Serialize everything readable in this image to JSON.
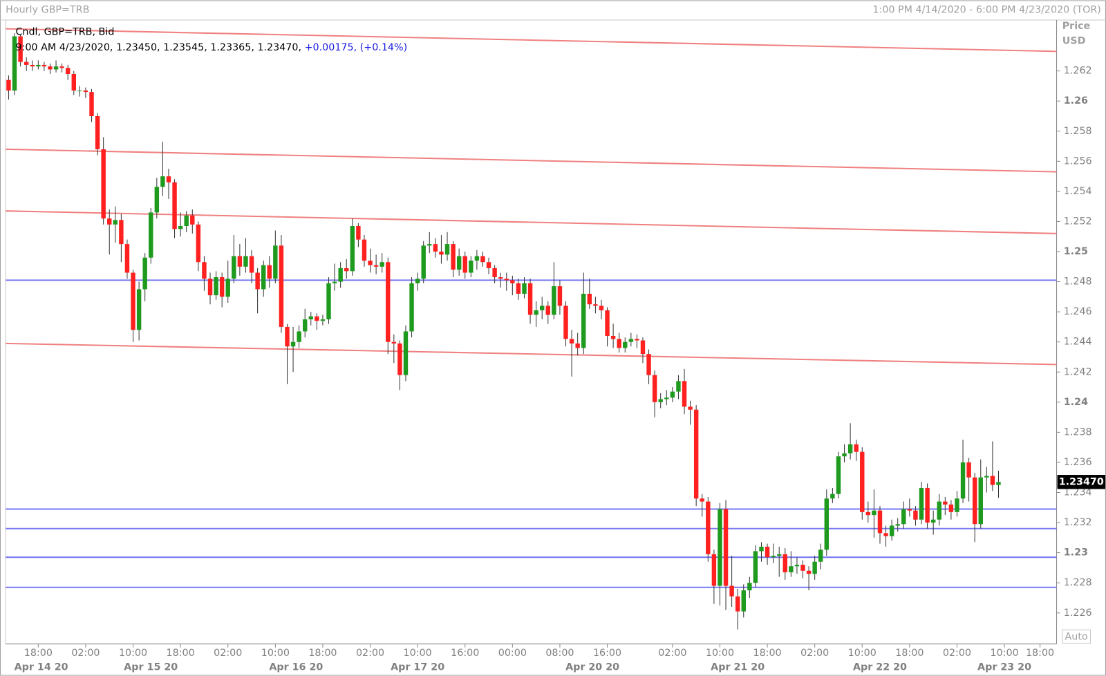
{
  "chart_data": {
    "type": "candlestick",
    "title": "Hourly GBP=TRB",
    "range_label": "1:00 PM 4/14/2020 - 6:00 PM 4/23/2020 (TOR)",
    "legend": {
      "line1": "Cndl, GBP=TRB, Bid",
      "line2": "9:00 AM 4/23/2020, 1.23450, 1.23545, 1.23365, 1.23470,",
      "change": "+0.00175, (+0.14%)"
    },
    "axis_title": "Price",
    "axis_unit": "USD",
    "auto_label": "Auto",
    "up_color": "#1e9b1e",
    "down_color": "#ff2020",
    "ylim": [
      1.22394,
      1.26538
    ],
    "yticks": [
      1.262,
      1.26,
      1.258,
      1.256,
      1.254,
      1.252,
      1.25,
      1.248,
      1.246,
      1.244,
      1.242,
      1.24,
      1.238,
      1.236,
      1.234,
      1.232,
      1.23,
      1.228,
      1.226
    ],
    "xlim": [
      -0.5,
      176.8
    ],
    "xticks": [
      {
        "value": 5,
        "label": "18:00"
      },
      {
        "value": 13,
        "label": "02:00"
      },
      {
        "value": 21,
        "label": "10:00"
      },
      {
        "value": 29,
        "label": "18:00"
      },
      {
        "value": 37,
        "label": "02:00"
      },
      {
        "value": 45,
        "label": "10:00"
      },
      {
        "value": 53,
        "label": "18:00"
      },
      {
        "value": 61,
        "label": "02:00"
      },
      {
        "value": 69,
        "label": "10:00"
      },
      {
        "value": 77,
        "label": "16:00"
      },
      {
        "value": 85,
        "label": "00:00"
      },
      {
        "value": 93,
        "label": "08:00"
      },
      {
        "value": 101,
        "label": "16:00"
      },
      {
        "value": 112,
        "label": "02:00"
      },
      {
        "value": 120,
        "label": "10:00"
      },
      {
        "value": 128,
        "label": "18:00"
      },
      {
        "value": 136,
        "label": "02:00"
      },
      {
        "value": 144,
        "label": "10:00"
      },
      {
        "value": 152,
        "label": "18:00"
      },
      {
        "value": 160,
        "label": "02:00"
      },
      {
        "value": 168,
        "label": "10:00"
      },
      {
        "value": 174,
        "label": "18:00"
      }
    ],
    "date_ticks": [
      {
        "value": 5.5,
        "label": "Apr 14 20"
      },
      {
        "value": 24,
        "label": "Apr 15 20"
      },
      {
        "value": 48.5,
        "label": "Apr 16 20"
      },
      {
        "value": 69,
        "label": "Apr 17 20"
      },
      {
        "value": 98.5,
        "label": "Apr 20 20"
      },
      {
        "value": 123,
        "label": "Apr 21 20"
      },
      {
        "value": 147,
        "label": "Apr 22 20"
      },
      {
        "value": 168,
        "label": "Apr 23 20"
      }
    ],
    "last_price": {
      "value": 1.2347,
      "label": "1.23470"
    },
    "hlines": {
      "color": "#7878f0",
      "values": [
        1.2481,
        1.2329,
        1.2316,
        1.2297,
        1.2277
      ]
    },
    "trendlines": {
      "color": "#f08080",
      "lines": [
        {
          "start": 1.2648,
          "end": 1.2633
        },
        {
          "start": 1.2568,
          "end": 1.2553
        },
        {
          "start": 1.2527,
          "end": 1.2512
        },
        {
          "start": 1.2439,
          "end": 1.2425
        }
      ]
    },
    "open": [
      1.2614,
      1.2607,
      1.2643,
      1.2626,
      1.2624,
      1.2623,
      1.2624,
      1.2623,
      1.2621,
      1.2623,
      1.2622,
      1.2618,
      1.2607,
      1.2607,
      1.2606,
      1.259,
      1.2568,
      1.2522,
      1.2518,
      1.2521,
      1.2505,
      1.2486,
      1.2448,
      1.2475,
      1.2496,
      1.2526,
      1.2543,
      1.255,
      1.2546,
      1.2515,
      1.2517,
      1.2524,
      1.2518,
      1.2493,
      1.2482,
      1.2471,
      1.2483,
      1.247,
      1.2482,
      1.2497,
      1.249,
      1.2497,
      1.2486,
      1.2475,
      1.2491,
      1.2482,
      1.2504,
      1.245,
      1.2437,
      1.244,
      1.2447,
      1.2455,
      1.2457,
      1.2454,
      1.2455,
      1.2479,
      1.248,
      1.2489,
      1.2487,
      1.2517,
      1.2508,
      1.2494,
      1.2491,
      1.249,
      1.2493,
      1.244,
      1.2439,
      1.2418,
      1.2447,
      1.2479,
      1.2482,
      1.2504,
      1.2505,
      1.25,
      1.2498,
      1.2505,
      1.2488,
      1.2497,
      1.2486,
      1.2494,
      1.2497,
      1.2493,
      1.2489,
      1.2483,
      1.2482,
      1.2481,
      1.2479,
      1.2472,
      1.2479,
      1.2458,
      1.2461,
      1.2464,
      1.2458,
      1.2477,
      1.2464,
      1.2442,
      1.2439,
      1.2436,
      1.2472,
      1.2465,
      1.2464,
      1.2461,
      1.2444,
      1.2442,
      1.2436,
      1.244,
      1.2442,
      1.2441,
      1.2432,
      1.2418,
      1.24,
      1.2402,
      1.2403,
      1.2407,
      1.2414,
      1.2397,
      1.2395,
      1.2336,
      1.2334,
      1.2299,
      1.2278,
      1.2329,
      1.2278,
      1.2271,
      1.2261,
      1.2275,
      1.228,
      1.2301,
      1.2304,
      1.2297,
      1.2298,
      1.2299,
      1.2287,
      1.2291,
      1.2292,
      1.2288,
      1.2286,
      1.2294,
      1.2302,
      1.2336,
      1.2339,
      1.2364,
      1.2366,
      1.2372,
      1.2367,
      1.2327,
      1.2325,
      1.2328,
      1.2313,
      1.2311,
      1.2318,
      1.2319,
      1.2329,
      1.2328,
      1.2322,
      1.2343,
      1.232,
      1.2322,
      1.2334,
      1.2332,
      1.2327,
      1.2336,
      1.236,
      1.235,
      1.2319,
      1.235,
      1.2351,
      1.2345
    ],
    "high": [
      1.2617,
      1.2645,
      1.2644,
      1.2629,
      1.2627,
      1.2627,
      1.2626,
      1.2625,
      1.2627,
      1.2625,
      1.2624,
      1.262,
      1.261,
      1.2609,
      1.2608,
      1.2592,
      1.2576,
      1.2528,
      1.253,
      1.2525,
      1.2508,
      1.2488,
      1.248,
      1.2499,
      1.2529,
      1.2549,
      1.2573,
      1.2555,
      1.2548,
      1.2526,
      1.2527,
      1.2528,
      1.252,
      1.2497,
      1.2486,
      1.2487,
      1.2486,
      1.2494,
      1.2511,
      1.2505,
      1.2509,
      1.2501,
      1.2489,
      1.2494,
      1.2497,
      1.2514,
      1.2511,
      1.2452,
      1.245,
      1.2451,
      1.2462,
      1.246,
      1.2459,
      1.2458,
      1.2483,
      1.2492,
      1.2493,
      1.2495,
      1.2522,
      1.2519,
      1.2511,
      1.2502,
      1.2498,
      1.2499,
      1.2496,
      1.2445,
      1.2441,
      1.2451,
      1.2483,
      1.2486,
      1.2507,
      1.2513,
      1.2509,
      1.2511,
      1.2513,
      1.2507,
      1.2502,
      1.25,
      1.2497,
      1.2501,
      1.25,
      1.2496,
      1.2491,
      1.2486,
      1.2486,
      1.2484,
      1.2482,
      1.2483,
      1.2482,
      1.2467,
      1.247,
      1.2467,
      1.2493,
      1.2481,
      1.2467,
      1.2448,
      1.2446,
      1.2486,
      1.2482,
      1.247,
      1.2468,
      1.2463,
      1.2452,
      1.2446,
      1.2443,
      1.2446,
      1.2445,
      1.2443,
      1.2435,
      1.2421,
      1.2406,
      1.2408,
      1.241,
      1.2418,
      1.2422,
      1.2401,
      1.2398,
      1.2339,
      1.2337,
      1.2302,
      1.2333,
      1.2335,
      1.2298,
      1.2276,
      1.2279,
      1.2284,
      1.2305,
      1.2307,
      1.2306,
      1.2306,
      1.2304,
      1.2303,
      1.2301,
      1.2297,
      1.2295,
      1.2291,
      1.2298,
      1.2306,
      1.2342,
      1.2343,
      1.2367,
      1.2372,
      1.2386,
      1.2375,
      1.237,
      1.2334,
      1.2342,
      1.2331,
      1.2318,
      1.2322,
      1.2323,
      1.2334,
      1.2336,
      1.2331,
      1.2347,
      1.2346,
      1.2328,
      1.2339,
      1.2337,
      1.2335,
      1.2341,
      1.2375,
      1.2363,
      1.2353,
      1.2362,
      1.2357,
      1.2374,
      1.23545
    ],
    "low": [
      1.2601,
      1.2604,
      1.2623,
      1.262,
      1.262,
      1.2621,
      1.262,
      1.2618,
      1.2619,
      1.2619,
      1.2614,
      1.2604,
      1.2603,
      1.2602,
      1.2586,
      1.2564,
      1.2518,
      1.2498,
      1.2506,
      1.2493,
      1.2482,
      1.244,
      1.2441,
      1.2467,
      1.2492,
      1.2522,
      1.2537,
      1.2535,
      1.2509,
      1.251,
      1.2513,
      1.2512,
      1.2487,
      1.2474,
      1.2465,
      1.2468,
      1.2463,
      1.2466,
      1.2479,
      1.2484,
      1.2486,
      1.2479,
      1.2459,
      1.247,
      1.2476,
      1.2479,
      1.2446,
      1.2412,
      1.242,
      1.2436,
      1.2443,
      1.2451,
      1.2448,
      1.2451,
      1.2452,
      1.2474,
      1.2476,
      1.2482,
      1.2484,
      1.2503,
      1.249,
      1.2486,
      1.2485,
      1.2486,
      1.2432,
      1.2426,
      1.2408,
      1.2414,
      1.2443,
      1.2474,
      1.2479,
      1.2499,
      1.2496,
      1.2492,
      1.2494,
      1.2483,
      1.2484,
      1.2482,
      1.2483,
      1.2488,
      1.249,
      1.2485,
      1.2479,
      1.2476,
      1.2474,
      1.2471,
      1.2468,
      1.2469,
      1.2452,
      1.245,
      1.2455,
      1.2452,
      1.2455,
      1.2458,
      1.2437,
      1.2417,
      1.2431,
      1.2432,
      1.2462,
      1.2459,
      1.2455,
      1.2437,
      1.2436,
      1.2433,
      1.2433,
      1.2437,
      1.2436,
      1.2426,
      1.2412,
      1.239,
      1.2396,
      1.2398,
      1.24,
      1.2402,
      1.2392,
      1.2385,
      1.2331,
      1.2324,
      1.2294,
      1.2266,
      1.2265,
      1.2262,
      1.2264,
      1.2249,
      1.2257,
      1.227,
      1.2277,
      1.2294,
      1.2292,
      1.2293,
      1.2284,
      1.2282,
      1.2284,
      1.2286,
      1.2283,
      1.2275,
      1.2282,
      1.2289,
      1.2298,
      1.2333,
      1.2336,
      1.236,
      1.2362,
      1.2361,
      1.2322,
      1.232,
      1.231,
      1.2306,
      1.2304,
      1.2308,
      1.2314,
      1.2316,
      1.2324,
      1.2318,
      1.2319,
      1.2316,
      1.2312,
      1.2318,
      1.2325,
      1.2322,
      1.2324,
      1.2333,
      1.2334,
      1.2307,
      1.2316,
      1.234,
      1.2341,
      1.23365
    ],
    "close": [
      1.2607,
      1.2643,
      1.2626,
      1.2624,
      1.2623,
      1.2624,
      1.2623,
      1.2621,
      1.2623,
      1.2622,
      1.2618,
      1.2607,
      1.2607,
      1.2606,
      1.259,
      1.2568,
      1.2522,
      1.2518,
      1.2521,
      1.2505,
      1.2486,
      1.2448,
      1.2475,
      1.2496,
      1.2526,
      1.2543,
      1.255,
      1.2546,
      1.2515,
      1.2517,
      1.2524,
      1.2518,
      1.2493,
      1.2482,
      1.2471,
      1.2483,
      1.247,
      1.2482,
      1.2497,
      1.249,
      1.2497,
      1.2486,
      1.2475,
      1.2491,
      1.2482,
      1.2504,
      1.245,
      1.2437,
      1.244,
      1.2447,
      1.2455,
      1.2457,
      1.2454,
      1.2455,
      1.2479,
      1.248,
      1.2489,
      1.2487,
      1.2517,
      1.2508,
      1.2494,
      1.2491,
      1.249,
      1.2493,
      1.244,
      1.2439,
      1.2418,
      1.2447,
      1.2479,
      1.2482,
      1.2504,
      1.2505,
      1.25,
      1.2498,
      1.2505,
      1.2488,
      1.2497,
      1.2486,
      1.2494,
      1.2497,
      1.2493,
      1.2489,
      1.2483,
      1.2482,
      1.2481,
      1.2479,
      1.2472,
      1.2479,
      1.2458,
      1.2461,
      1.2464,
      1.2458,
      1.2477,
      1.2464,
      1.2442,
      1.2439,
      1.2436,
      1.2472,
      1.2465,
      1.2464,
      1.2461,
      1.2444,
      1.2442,
      1.2436,
      1.244,
      1.2442,
      1.2441,
      1.2432,
      1.2418,
      1.24,
      1.2402,
      1.2403,
      1.2407,
      1.2414,
      1.2397,
      1.2395,
      1.2336,
      1.2334,
      1.2299,
      1.2278,
      1.2329,
      1.2278,
      1.2271,
      1.2261,
      1.2275,
      1.228,
      1.2301,
      1.2304,
      1.2297,
      1.2298,
      1.2299,
      1.2287,
      1.2291,
      1.2292,
      1.2288,
      1.2286,
      1.2294,
      1.2302,
      1.2336,
      1.2339,
      1.2364,
      1.2366,
      1.2372,
      1.2367,
      1.2327,
      1.2325,
      1.2328,
      1.2313,
      1.2311,
      1.2318,
      1.2319,
      1.2329,
      1.2328,
      1.2322,
      1.2343,
      1.232,
      1.2322,
      1.2334,
      1.2332,
      1.2327,
      1.2336,
      1.236,
      1.235,
      1.2319,
      1.235,
      1.2351,
      1.2345,
      1.2347
    ]
  }
}
